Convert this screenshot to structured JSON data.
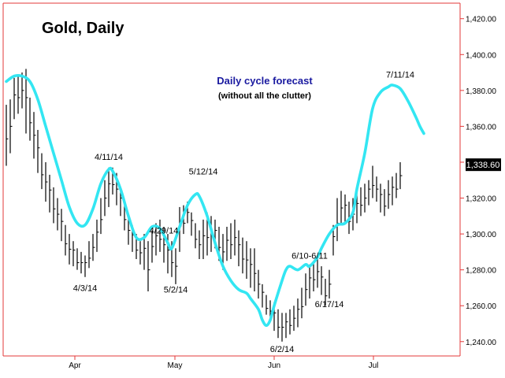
{
  "chart_data": {
    "type": "line",
    "title": "Gold, Daily",
    "annotation_title": "Daily cycle forecast",
    "annotation_subtitle": "(without all the clutter)",
    "x_ticks": [
      "Apr",
      "May",
      "Jun",
      "Jul"
    ],
    "y_ticks": [
      "1,240.00",
      "1,260.00",
      "1,280.00",
      "1,300.00",
      "1,320.00",
      "1,340.00",
      "1,360.00",
      "1,380.00",
      "1,400.00",
      "1,420.00"
    ],
    "ylim": [
      1232,
      1428
    ],
    "last_price": "1,338.60",
    "last_price_value": 1338.6,
    "grid": false,
    "colors": {
      "price_bars": "#000000",
      "forecast": "#33e6f2",
      "axis": "#e33a3a",
      "title_annotation": "#1a1aa0",
      "last_price_box": "#000000"
    },
    "labels": [
      {
        "text": "4/3/14",
        "x_index": 20,
        "value": 1270
      },
      {
        "text": "4/11/14",
        "x_index": 26,
        "value": 1343
      },
      {
        "text": "4/29/14",
        "x_index": 40,
        "value": 1302
      },
      {
        "text": "5/2/14",
        "x_index": 43,
        "value": 1269
      },
      {
        "text": "5/12/14",
        "x_index": 50,
        "value": 1335
      },
      {
        "text": "6/2/14",
        "x_index": 70,
        "value": 1236
      },
      {
        "text": "6/10-6/11",
        "x_index": 77,
        "value": 1288
      },
      {
        "text": "6/17/14",
        "x_index": 82,
        "value": 1261
      },
      {
        "text": "7/11/14",
        "x_index": 100,
        "value": 1389
      }
    ],
    "series": [
      {
        "type": "ohlc",
        "points": [
          [
            1338,
            1372
          ],
          [
            1345,
            1375
          ],
          [
            1364,
            1387
          ],
          [
            1367,
            1389
          ],
          [
            1370,
            1390
          ],
          [
            1356,
            1392
          ],
          [
            1352,
            1376
          ],
          [
            1342,
            1368
          ],
          [
            1334,
            1358
          ],
          [
            1325,
            1345
          ],
          [
            1318,
            1340
          ],
          [
            1312,
            1333
          ],
          [
            1306,
            1326
          ],
          [
            1302,
            1320
          ],
          [
            1296,
            1314
          ],
          [
            1288,
            1305
          ],
          [
            1283,
            1300
          ],
          [
            1282,
            1296
          ],
          [
            1280,
            1292
          ],
          [
            1278,
            1290
          ],
          [
            1276,
            1288
          ],
          [
            1281,
            1296
          ],
          [
            1285,
            1300
          ],
          [
            1290,
            1308
          ],
          [
            1300,
            1320
          ],
          [
            1310,
            1330
          ],
          [
            1315,
            1337
          ],
          [
            1322,
            1337
          ],
          [
            1316,
            1334
          ],
          [
            1310,
            1326
          ],
          [
            1302,
            1318
          ],
          [
            1294,
            1310
          ],
          [
            1290,
            1305
          ],
          [
            1286,
            1300
          ],
          [
            1283,
            1296
          ],
          [
            1280,
            1300
          ],
          [
            1268,
            1296
          ],
          [
            1284,
            1302
          ],
          [
            1288,
            1306
          ],
          [
            1290,
            1308
          ],
          [
            1284,
            1304
          ],
          [
            1278,
            1300
          ],
          [
            1276,
            1296
          ],
          [
            1272,
            1292
          ],
          [
            1290,
            1315
          ],
          [
            1300,
            1316
          ],
          [
            1306,
            1318
          ],
          [
            1299,
            1312
          ],
          [
            1292,
            1306
          ],
          [
            1286,
            1302
          ],
          [
            1286,
            1308
          ],
          [
            1288,
            1312
          ],
          [
            1290,
            1310
          ],
          [
            1292,
            1308
          ],
          [
            1285,
            1304
          ],
          [
            1280,
            1300
          ],
          [
            1285,
            1304
          ],
          [
            1286,
            1306
          ],
          [
            1288,
            1308
          ],
          [
            1282,
            1302
          ],
          [
            1278,
            1298
          ],
          [
            1275,
            1296
          ],
          [
            1270,
            1292
          ],
          [
            1268,
            1292
          ],
          [
            1264,
            1280
          ],
          [
            1259,
            1272
          ],
          [
            1255,
            1266
          ],
          [
            1251,
            1263
          ],
          [
            1246,
            1262
          ],
          [
            1242,
            1258
          ],
          [
            1240,
            1256
          ],
          [
            1242,
            1256
          ],
          [
            1244,
            1258
          ],
          [
            1246,
            1260
          ],
          [
            1248,
            1264
          ],
          [
            1253,
            1270
          ],
          [
            1260,
            1278
          ],
          [
            1264,
            1283
          ],
          [
            1268,
            1285
          ],
          [
            1270,
            1288
          ],
          [
            1266,
            1282
          ],
          [
            1260,
            1275
          ],
          [
            1264,
            1280
          ],
          [
            1288,
            1305
          ],
          [
            1296,
            1320
          ],
          [
            1305,
            1324
          ],
          [
            1306,
            1322
          ],
          [
            1300,
            1318
          ],
          [
            1302,
            1320
          ],
          [
            1306,
            1324
          ],
          [
            1310,
            1326
          ],
          [
            1312,
            1328
          ],
          [
            1316,
            1330
          ],
          [
            1320,
            1338
          ],
          [
            1318,
            1332
          ],
          [
            1312,
            1328
          ],
          [
            1310,
            1325
          ],
          [
            1314,
            1330
          ],
          [
            1316,
            1332
          ],
          [
            1320,
            1334
          ],
          [
            1325,
            1340
          ]
        ]
      },
      {
        "type": "forecast",
        "points": [
          [
            0,
            1385
          ],
          [
            2,
            1388
          ],
          [
            4,
            1388
          ],
          [
            6,
            1385
          ],
          [
            8,
            1375
          ],
          [
            10,
            1360
          ],
          [
            12,
            1345
          ],
          [
            14,
            1330
          ],
          [
            16,
            1315
          ],
          [
            18,
            1306
          ],
          [
            20,
            1305
          ],
          [
            22,
            1314
          ],
          [
            24,
            1328
          ],
          [
            26,
            1336
          ],
          [
            27,
            1335
          ],
          [
            29,
            1325
          ],
          [
            31,
            1310
          ],
          [
            33,
            1298
          ],
          [
            35,
            1298
          ],
          [
            37,
            1304
          ],
          [
            39,
            1303
          ],
          [
            41,
            1295
          ],
          [
            42,
            1292
          ],
          [
            44,
            1304
          ],
          [
            46,
            1316
          ],
          [
            48,
            1322
          ],
          [
            49,
            1321
          ],
          [
            51,
            1310
          ],
          [
            53,
            1295
          ],
          [
            55,
            1282
          ],
          [
            57,
            1274
          ],
          [
            59,
            1269
          ],
          [
            61,
            1267
          ],
          [
            62,
            1264
          ],
          [
            64,
            1258
          ],
          [
            65,
            1252
          ],
          [
            66,
            1249
          ],
          [
            67,
            1252
          ],
          [
            68,
            1260
          ],
          [
            70,
            1274
          ],
          [
            71,
            1280
          ],
          [
            72,
            1282
          ],
          [
            74,
            1280
          ],
          [
            76,
            1283
          ],
          [
            77,
            1282
          ],
          [
            79,
            1287
          ],
          [
            80,
            1292
          ],
          [
            82,
            1300
          ],
          [
            84,
            1305
          ],
          [
            86,
            1306
          ],
          [
            88,
            1312
          ],
          [
            89,
            1325
          ],
          [
            91,
            1345
          ],
          [
            93,
            1370
          ],
          [
            95,
            1379
          ],
          [
            97,
            1382
          ],
          [
            98,
            1383
          ],
          [
            100,
            1381
          ],
          [
            102,
            1374
          ],
          [
            104,
            1365
          ],
          [
            105,
            1360
          ],
          [
            106,
            1356
          ]
        ]
      }
    ]
  }
}
